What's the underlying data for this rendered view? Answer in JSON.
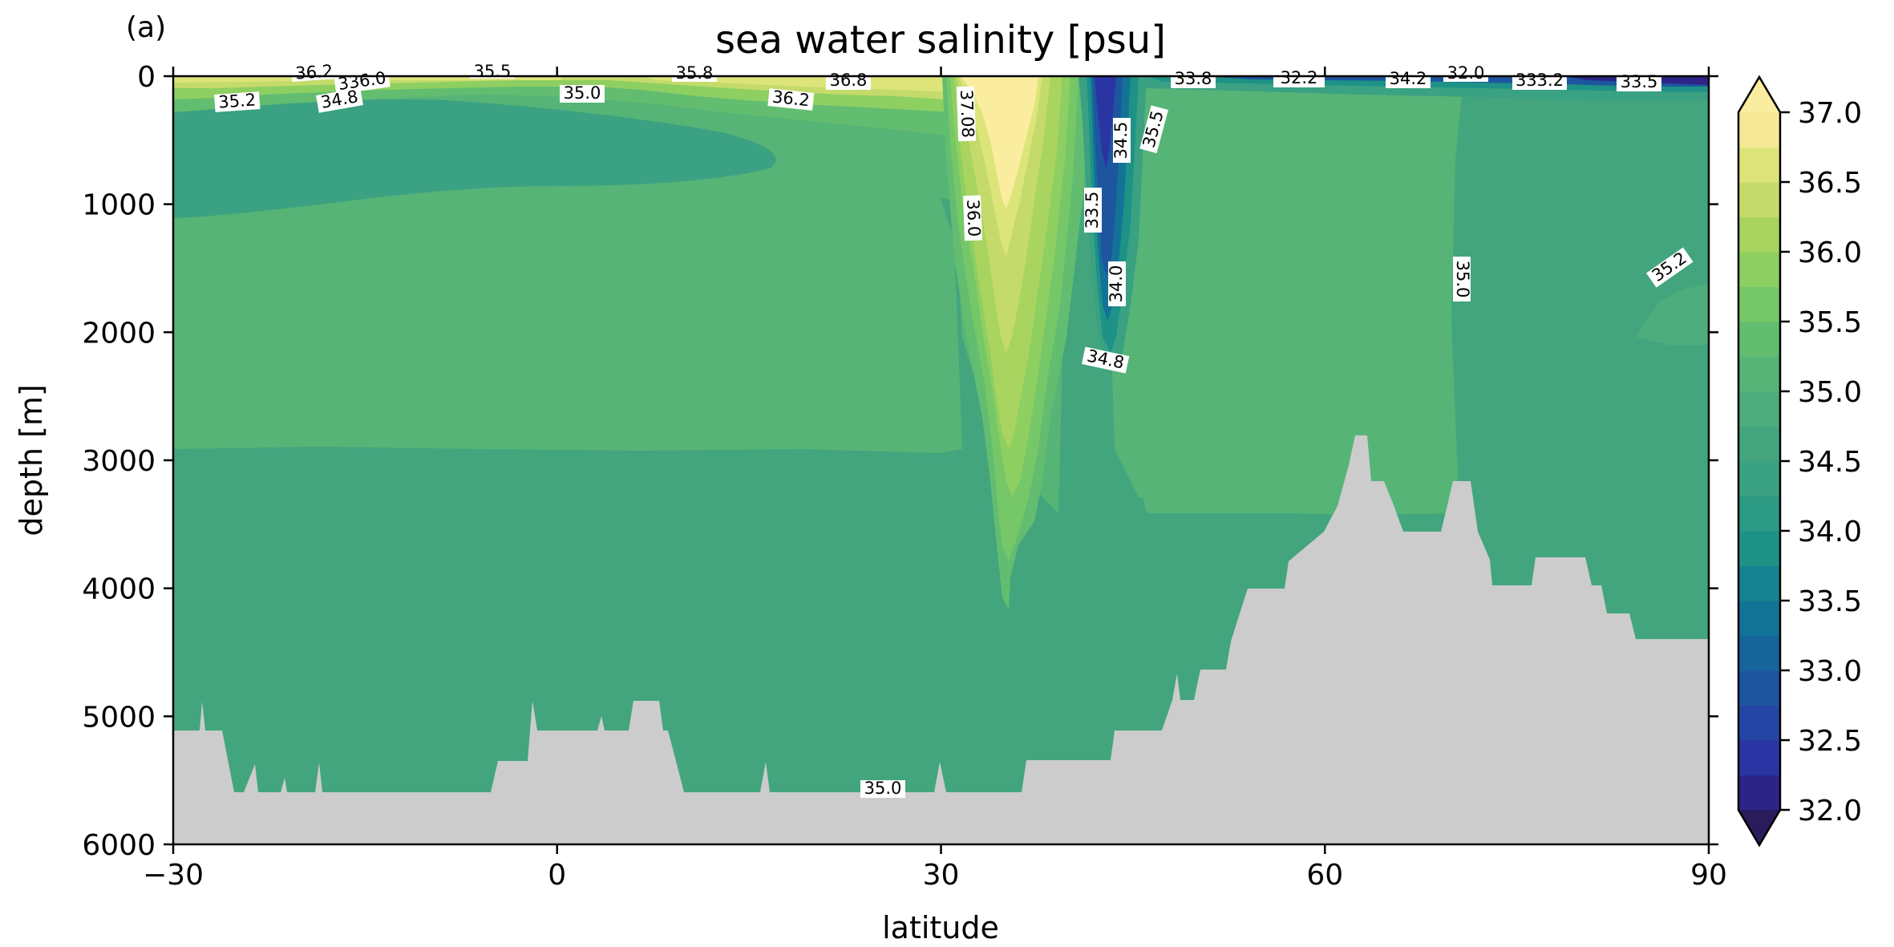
{
  "panel_label": "(a)",
  "chart_data": {
    "type": "heatmap",
    "title": "sea water salinity [psu]",
    "xlabel": "latitude",
    "ylabel": "depth [m]",
    "xlim": [
      -30,
      90
    ],
    "ylim": [
      6000,
      0
    ],
    "y_inverted": true,
    "x_ticks": [
      -30,
      0,
      30,
      60,
      90
    ],
    "x_tick_labels": [
      "−30",
      "0",
      "30",
      "60",
      "90"
    ],
    "y_ticks": [
      0,
      1000,
      2000,
      3000,
      4000,
      5000,
      6000
    ],
    "y_tick_labels": [
      "0",
      "1000",
      "2000",
      "3000",
      "4000",
      "5000",
      "6000"
    ],
    "grid": false,
    "colormap": "haline-like (dark navy to teal to yellow)",
    "colorbar": {
      "range": [
        32.0,
        37.0
      ],
      "extend": "both",
      "ticks": [
        32.0,
        32.5,
        33.0,
        33.5,
        34.0,
        34.5,
        35.0,
        35.5,
        36.0,
        36.5,
        37.0
      ],
      "tick_labels": [
        "32.0",
        "32.5",
        "33.0",
        "33.5",
        "34.0",
        "34.5",
        "35.0",
        "35.5",
        "36.0",
        "36.5",
        "37.0"
      ],
      "levels": [
        32.0,
        32.25,
        32.5,
        32.75,
        33.0,
        33.25,
        33.5,
        33.75,
        34.0,
        34.25,
        34.5,
        34.75,
        35.0,
        35.25,
        35.5,
        35.75,
        36.0,
        36.25,
        36.5,
        36.75,
        37.0
      ],
      "colors": [
        "#2a1c5c",
        "#2e2487",
        "#2b34a3",
        "#2445a3",
        "#1d569f",
        "#17649b",
        "#137397",
        "#15838f",
        "#1e9287",
        "#2d9a84",
        "#3aa182",
        "#43a57e",
        "#4dad7c",
        "#56b476",
        "#62bd70",
        "#76c768",
        "#8ecf61",
        "#a8d45f",
        "#c4db6b",
        "#dde57a",
        "#f6e995",
        "#fbeda0"
      ]
    },
    "land_color": "#cccccc",
    "contour_labels": [
      "35.2",
      "36.2",
      "336.0",
      "34.8",
      "35.5",
      "35.0",
      "35.8",
      "36.2",
      "36.8",
      "37.08",
      "36.0",
      "33.5",
      "34.5",
      "35.5",
      "34.0",
      "34.8",
      "33.8",
      "32.2",
      "34.2",
      "32.0",
      "333.2",
      "33.5",
      "35.0",
      "35.2",
      "35.0"
    ]
  }
}
